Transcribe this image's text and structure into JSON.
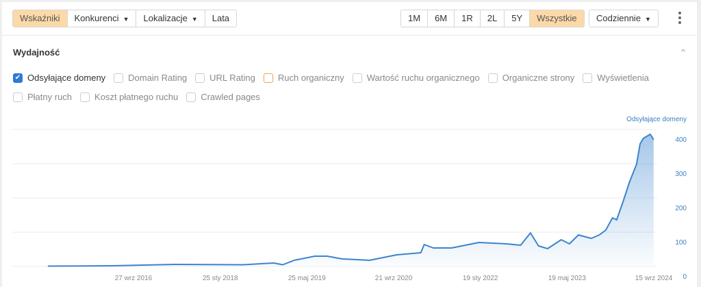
{
  "toolbar": {
    "left": [
      {
        "label": "Wskaźniki",
        "active": true,
        "caret": false
      },
      {
        "label": "Konkurenci",
        "caret": true
      },
      {
        "label": "Lokalizacje",
        "caret": true
      },
      {
        "label": "Lata",
        "caret": false
      }
    ],
    "ranges": [
      {
        "label": "1M"
      },
      {
        "label": "6M"
      },
      {
        "label": "1R"
      },
      {
        "label": "2L"
      },
      {
        "label": "5Y"
      },
      {
        "label": "Wszystkie",
        "active": true
      }
    ],
    "interval": "Codziennie",
    "more_icon": "vertical-dots-icon"
  },
  "section": {
    "title": "Wydajność",
    "collapse_icon": "chevron-up-icon"
  },
  "metrics": [
    [
      {
        "label": "Odsyłające domeny",
        "checked": true
      },
      {
        "label": "Domain Rating"
      },
      {
        "label": "URL Rating"
      },
      {
        "label": "Ruch organiczny",
        "color": "#e8a84a"
      },
      {
        "label": "Wartość ruchu organicznego"
      },
      {
        "label": "Organiczne strony"
      },
      {
        "label": "Wyświetlenia"
      }
    ],
    [
      {
        "label": "Płatny ruch"
      },
      {
        "label": "Koszt płatnego ruchu"
      },
      {
        "label": "Crawled pages"
      }
    ]
  ],
  "colors": {
    "accent": "#fcd9a8",
    "line": "#3a84cc",
    "checkbox": "#2f7bd6"
  },
  "chart_data": {
    "type": "area",
    "series": [
      {
        "name": "Odsyłające domeny",
        "points": [
          [
            "2015-06-06",
            1
          ],
          [
            "2016-06-01",
            2
          ],
          [
            "2017-05-15",
            6
          ],
          [
            "2018-06-01",
            5
          ],
          [
            "2018-11-20",
            10
          ],
          [
            "2019-01-10",
            5
          ],
          [
            "2019-03-15",
            18
          ],
          [
            "2019-07-08",
            30
          ],
          [
            "2019-09-15",
            30
          ],
          [
            "2019-12-08",
            22
          ],
          [
            "2020-05-09",
            18
          ],
          [
            "2020-10-09",
            34
          ],
          [
            "2021-02-20",
            40
          ],
          [
            "2021-03-11",
            64
          ],
          [
            "2021-05-01",
            54
          ],
          [
            "2021-08-11",
            54
          ],
          [
            "2022-01-11",
            70
          ],
          [
            "2022-06-14",
            66
          ],
          [
            "2022-09-01",
            62
          ],
          [
            "2022-10-26",
            98
          ],
          [
            "2022-12-10",
            60
          ],
          [
            "2023-01-30",
            52
          ],
          [
            "2023-04-16",
            78
          ],
          [
            "2023-06-01",
            66
          ],
          [
            "2023-07-21",
            92
          ],
          [
            "2023-10-01",
            82
          ],
          [
            "2023-11-15",
            92
          ],
          [
            "2023-12-21",
            106
          ],
          [
            "2024-01-28",
            142
          ],
          [
            "2024-02-20",
            136
          ],
          [
            "2024-03-25",
            186
          ],
          [
            "2024-05-03",
            248
          ],
          [
            "2024-06-10",
            298
          ],
          [
            "2024-06-30",
            358
          ],
          [
            "2024-07-18",
            374
          ],
          [
            "2024-08-26",
            386
          ],
          [
            "2024-09-14",
            370
          ]
        ]
      }
    ],
    "x_ticks": [
      "27 wrz 2016",
      "25 sty 2018",
      "25 maj 2019",
      "21 wrz 2020",
      "19 sty 2022",
      "19 maj 2023",
      "15 wrz 2024"
    ],
    "x_tick_dates": [
      "2016-09-27",
      "2018-01-25",
      "2019-05-25",
      "2020-09-21",
      "2022-01-19",
      "2023-05-19",
      "2024-09-15"
    ],
    "y_ticks": [
      0,
      100,
      200,
      300,
      400
    ],
    "ylim": [
      0,
      400
    ],
    "y_axis_title": "Odsyłające domeny",
    "y_axis_side": "right",
    "grid": true
  }
}
